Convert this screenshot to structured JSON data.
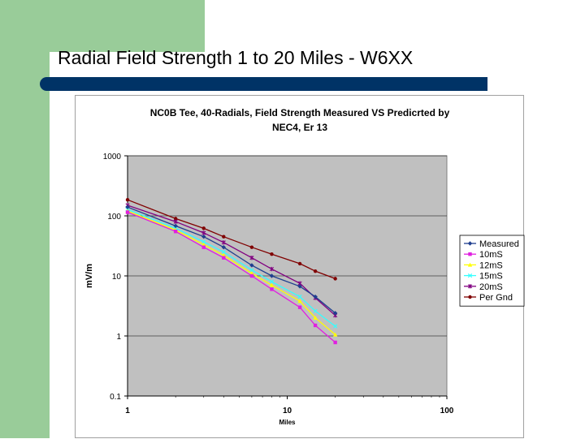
{
  "slide": {
    "title": "Radial Field Strength 1 to 20 Miles - W6XX",
    "colors": {
      "green": "#99cc99",
      "bar": "#003366"
    }
  },
  "chart_data": {
    "type": "line",
    "x_scale": "log",
    "y_scale": "log",
    "title_lines": [
      "NC0B Tee, 40-Radials, Field Strength Measured VS Predicrted by",
      "NEC4, Er 13"
    ],
    "xlabel": "Miles",
    "ylabel": "mV/m",
    "xlim": [
      1,
      100
    ],
    "ylim": [
      0.1,
      1000
    ],
    "x_ticks": [
      {
        "value": 1,
        "label": "1"
      },
      {
        "value": 10,
        "label": "10"
      },
      {
        "value": 100,
        "label": "100"
      }
    ],
    "y_ticks": [
      {
        "value": 1000,
        "label": "1000"
      },
      {
        "value": 100,
        "label": "100"
      },
      {
        "value": 10,
        "label": "10"
      },
      {
        "value": 1,
        "label": "1"
      },
      {
        "value": 0.1,
        "label": "0.1"
      }
    ],
    "plot_background": "#c0c0c0",
    "gridlines": "horizontal",
    "legend_position": "right",
    "x": [
      1,
      2,
      3,
      4,
      6,
      8,
      12,
      15,
      20
    ],
    "series": [
      {
        "name": "Measured",
        "color": "#1f3f8f",
        "marker": "diamond",
        "values": [
          140,
          68,
          45,
          30,
          15,
          10,
          6.7,
          4.5,
          2.4
        ]
      },
      {
        "name": "10mS",
        "color": "#e020e0",
        "marker": "square",
        "values": [
          115,
          55,
          30,
          20,
          10,
          6,
          3,
          1.5,
          0.78
        ]
      },
      {
        "name": "12mS",
        "color": "#ffff00",
        "marker": "triangle",
        "values": [
          120,
          58,
          33,
          22,
          11,
          7,
          3.8,
          2,
          1.05
        ]
      },
      {
        "name": "15mS",
        "color": "#33ffff",
        "marker": "x",
        "values": [
          128,
          62,
          37,
          25,
          12.5,
          8,
          4.5,
          2.6,
          1.45
        ]
      },
      {
        "name": "20mS",
        "color": "#800080",
        "marker": "star",
        "values": [
          150,
          80,
          52,
          36,
          20,
          13,
          7.5,
          4.3,
          2.2
        ]
      },
      {
        "name": "Per Gnd",
        "color": "#800000",
        "marker": "circle",
        "values": [
          185,
          90,
          62,
          45,
          30,
          23,
          16,
          12,
          9
        ]
      }
    ]
  }
}
